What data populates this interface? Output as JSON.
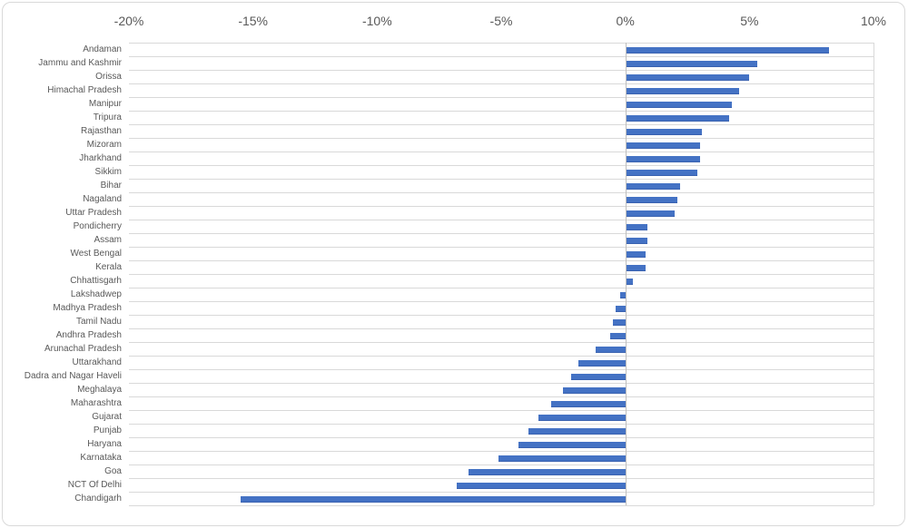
{
  "chart": {
    "bar_color": "#4472C4",
    "bar_edge_color": "#3A62B0",
    "gridline_color": "#D9D9D9",
    "axis_line_color": "#BFBFBF",
    "text_color": "#595959",
    "border_color": "#D9D9D9",
    "background_color": "#FFFFFF"
  },
  "chart_data": {
    "type": "bar",
    "orientation": "horizontal",
    "title": "",
    "xlabel": "",
    "ylabel": "",
    "xlim": [
      -20,
      10
    ],
    "x_ticks": [
      "-20%",
      "-15%",
      "-10%",
      "-5%",
      "0%",
      "5%",
      "10%"
    ],
    "x_tick_values": [
      -20,
      -15,
      -10,
      -5,
      0,
      5,
      10
    ],
    "tick_position": "top",
    "grid": "category-separator-lines",
    "legend": "none",
    "categories": [
      "Andaman",
      "Jammu and Kashmir",
      "Orissa",
      "Himachal Pradesh",
      "Manipur",
      "Tripura",
      "Rajasthan",
      "Mizoram",
      "Jharkhand",
      "Sikkim",
      "Bihar",
      "Nagaland",
      "Uttar Pradesh",
      "Pondicherry",
      "Assam",
      "West Bengal",
      "Kerala",
      "Chhattisgarh",
      "Lakshadwep",
      "Madhya Pradesh",
      "Tamil Nadu",
      "Andhra Pradesh",
      "Arunachal Pradesh",
      "Uttarakhand",
      "Dadra and Nagar Haveli",
      "Meghalaya",
      "Maharashtra",
      "Gujarat",
      "Punjab",
      "Haryana",
      "Karnataka",
      "Goa",
      "NCT Of Delhi",
      "Chandigarh"
    ],
    "values": [
      8.2,
      5.3,
      5.0,
      4.6,
      4.3,
      4.2,
      3.1,
      3.0,
      3.0,
      2.9,
      2.2,
      2.1,
      2.0,
      0.9,
      0.9,
      0.8,
      0.8,
      0.3,
      -0.2,
      -0.4,
      -0.5,
      -0.6,
      -1.2,
      -1.9,
      -2.2,
      -2.5,
      -3.0,
      -3.5,
      -3.9,
      -4.3,
      -5.1,
      -6.3,
      -6.8,
      -15.5
    ],
    "values_unit": "%"
  }
}
